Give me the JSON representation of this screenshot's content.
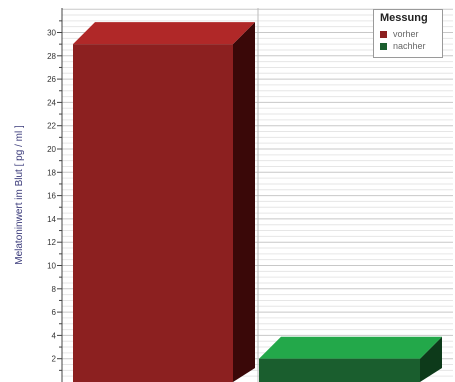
{
  "chart_data": {
    "type": "bar",
    "ylabel": "Melatoninwert im Blut [ pg / ml ]",
    "ylim": [
      0,
      32
    ],
    "yticks": [
      2,
      4,
      6,
      8,
      10,
      12,
      14,
      16,
      18,
      20,
      22,
      24,
      26,
      28,
      30
    ],
    "categories": [
      "vorher",
      "nachher"
    ],
    "values": [
      29,
      2
    ],
    "colors": {
      "vorher_front": "#8c2020",
      "vorher_top": "#b02828",
      "vorher_side": "#3a0808",
      "nachher_front": "#1a5e2e",
      "nachher_top": "#23a84a",
      "nachher_side": "#0d3a1a"
    },
    "legend": {
      "title": "Messung",
      "placement": "top-right",
      "items": [
        {
          "label": "vorher",
          "color": "#8c2020"
        },
        {
          "label": "nachher",
          "color": "#1a5e2e"
        }
      ]
    },
    "grid": true
  }
}
